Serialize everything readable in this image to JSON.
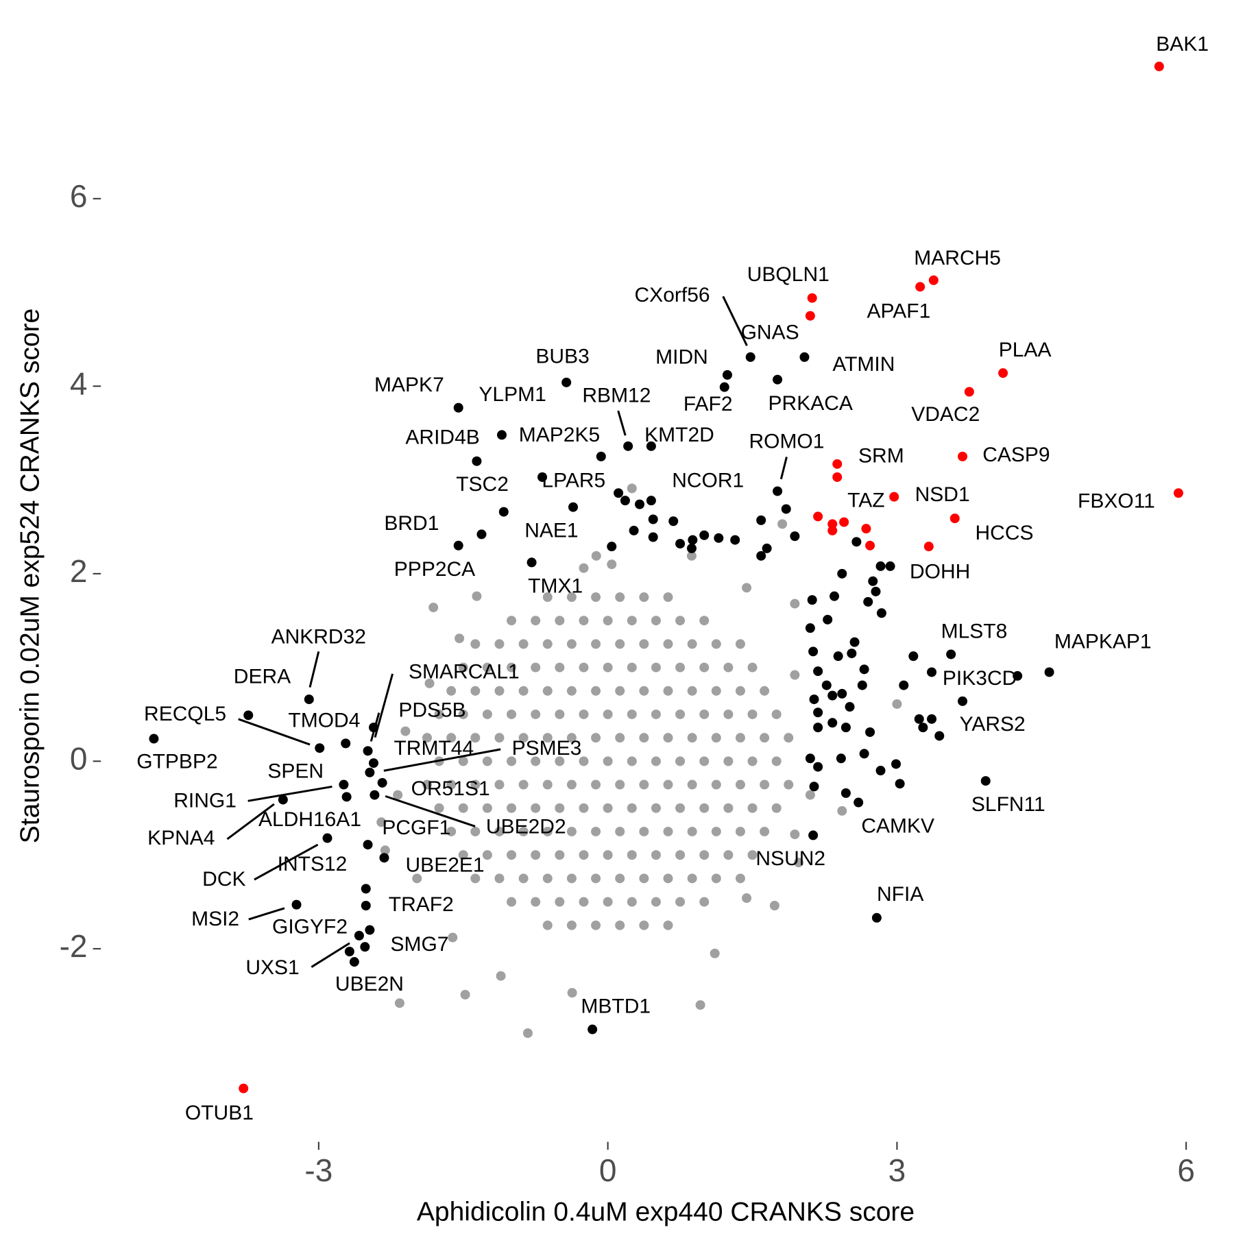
{
  "chart_data": {
    "type": "scatter",
    "xlabel": "Aphidicolin 0.4uM exp440 CRANKS score",
    "ylabel": "Staurosporin 0.02uM exp524 CRANKS score",
    "xlim": [
      -5.2,
      6.4
    ],
    "ylim": [
      -4.0,
      7.8
    ],
    "xticks": [
      -3,
      0,
      3,
      6
    ],
    "yticks": [
      -2,
      0,
      2,
      4,
      6
    ],
    "grid": false,
    "series": [
      {
        "color": "#a0a0a0",
        "x": [
          -0.625,
          -0.375,
          -0.125,
          0.125,
          0.375,
          0.625,
          -1,
          -0.75,
          -0.5,
          -0.25,
          0,
          0.25,
          0.5,
          0.75,
          1,
          -1.375,
          -1.125,
          -0.875,
          -0.625,
          -0.375,
          -0.125,
          0.125,
          0.375,
          0.625,
          0.875,
          1.125,
          1.375,
          -1.5,
          -1.25,
          -1,
          -0.75,
          -0.5,
          -0.25,
          0,
          0.25,
          0.5,
          0.75,
          1,
          1.25,
          1.5,
          -1.625,
          -1.375,
          -1.125,
          -0.875,
          -0.625,
          -0.375,
          -0.125,
          0.125,
          0.375,
          0.625,
          0.875,
          1.125,
          1.375,
          1.625,
          -1.75,
          -1.5,
          -1.25,
          -1,
          -0.75,
          -0.5,
          -0.25,
          0,
          0.25,
          0.5,
          0.75,
          1,
          1.25,
          1.5,
          1.75,
          -1.875,
          -1.625,
          -1.375,
          -1.125,
          -0.875,
          -0.625,
          -0.375,
          -0.125,
          0.125,
          0.375,
          0.625,
          0.875,
          1.125,
          1.375,
          1.625,
          1.875,
          -1.75,
          -1.5,
          -1.25,
          -1,
          -0.75,
          -0.5,
          -0.25,
          0,
          0.25,
          0.5,
          0.75,
          1,
          1.25,
          1.5,
          1.75,
          -1.875,
          -1.625,
          -1.375,
          -1.125,
          -0.875,
          -0.625,
          -0.375,
          -0.125,
          0.125,
          0.375,
          0.625,
          0.875,
          1.125,
          1.375,
          1.625,
          1.875,
          -1.75,
          -1.5,
          -1.25,
          -1,
          -0.75,
          -0.5,
          -0.25,
          0,
          0.25,
          0.5,
          0.75,
          1,
          1.25,
          1.5,
          1.75,
          -1.625,
          -1.375,
          -1.125,
          -0.875,
          -0.625,
          -0.375,
          -0.125,
          0.125,
          0.375,
          0.625,
          0.875,
          1.125,
          1.375,
          1.625,
          -1.5,
          -1.25,
          -1,
          -0.75,
          -0.5,
          -0.25,
          0,
          0.25,
          0.5,
          0.75,
          1,
          1.25,
          1.5,
          -1.375,
          -1.125,
          -0.875,
          -0.625,
          -0.375,
          -0.125,
          0.125,
          0.375,
          0.625,
          0.875,
          1.125,
          1.375,
          -1,
          -0.75,
          -0.5,
          -0.25,
          0,
          0.25,
          0.5,
          0.75,
          1,
          -0.625,
          -0.375,
          -0.125,
          0.125,
          0.375,
          0.625,
          0.25,
          -0.12,
          -0.25,
          0.04,
          -1.81,
          -1.54,
          -1.36,
          3.0,
          1.98,
          1.73,
          1.44,
          0.96,
          -0.83,
          -1.48,
          -2.16,
          -1.11,
          -0.37,
          -2.35,
          -2.31,
          -2.18,
          -2.1,
          1.81,
          1.94,
          2.43,
          2.1,
          0.87,
          1.44,
          -1.61,
          1.11,
          1.94,
          -1.98,
          1.94,
          -1.85
        ],
        "values": [
          1.75,
          1.75,
          1.75,
          1.75,
          1.75,
          1.75,
          1.5,
          1.5,
          1.5,
          1.5,
          1.5,
          1.5,
          1.5,
          1.5,
          1.5,
          1.25,
          1.25,
          1.25,
          1.25,
          1.25,
          1.25,
          1.25,
          1.25,
          1.25,
          1.25,
          1.25,
          1.25,
          1,
          1,
          1,
          1,
          1,
          1,
          1,
          1,
          1,
          1,
          1,
          1,
          1,
          0.75,
          0.75,
          0.75,
          0.75,
          0.75,
          0.75,
          0.75,
          0.75,
          0.75,
          0.75,
          0.75,
          0.75,
          0.75,
          0.75,
          0.5,
          0.5,
          0.5,
          0.5,
          0.5,
          0.5,
          0.5,
          0.5,
          0.5,
          0.5,
          0.5,
          0.5,
          0.5,
          0.5,
          0.5,
          0.25,
          0.25,
          0.25,
          0.25,
          0.25,
          0.25,
          0.25,
          0.25,
          0.25,
          0.25,
          0.25,
          0.25,
          0.25,
          0.25,
          0.25,
          0.25,
          0,
          0,
          0,
          0,
          0,
          0,
          0,
          0,
          0,
          0,
          0,
          0,
          0,
          0,
          0,
          -0.25,
          -0.25,
          -0.25,
          -0.25,
          -0.25,
          -0.25,
          -0.25,
          -0.25,
          -0.25,
          -0.25,
          -0.25,
          -0.25,
          -0.25,
          -0.25,
          -0.25,
          -0.25,
          -0.5,
          -0.5,
          -0.5,
          -0.5,
          -0.5,
          -0.5,
          -0.5,
          -0.5,
          -0.5,
          -0.5,
          -0.5,
          -0.5,
          -0.5,
          -0.5,
          -0.5,
          -0.75,
          -0.75,
          -0.75,
          -0.75,
          -0.75,
          -0.75,
          -0.75,
          -0.75,
          -0.75,
          -0.75,
          -0.75,
          -0.75,
          -0.75,
          -0.75,
          -1,
          -1,
          -1,
          -1,
          -1,
          -1,
          -1,
          -1,
          -1,
          -1,
          -1,
          -1,
          -1,
          -1.25,
          -1.25,
          -1.25,
          -1.25,
          -1.25,
          -1.25,
          -1.25,
          -1.25,
          -1.25,
          -1.25,
          -1.25,
          -1.25,
          -1.5,
          -1.5,
          -1.5,
          -1.5,
          -1.5,
          -1.5,
          -1.5,
          -1.5,
          -1.5,
          -1.75,
          -1.75,
          -1.75,
          -1.75,
          -1.75,
          -1.75,
          2.91,
          2.19,
          2.06,
          2.1,
          1.64,
          1.31,
          1.76,
          0.61,
          -1.08,
          -1.54,
          -1.46,
          -2.6,
          -2.9,
          -2.49,
          -2.58,
          -2.29,
          -2.47,
          -0.65,
          -0.95,
          -0.36,
          0.32,
          2.53,
          1.68,
          -0.53,
          -0.36,
          2.19,
          1.85,
          -1.88,
          -2.05,
          -0.78,
          -1.25,
          0.92,
          0.83
        ]
      },
      {
        "color": "#000000",
        "x": [
          4.25,
          2.93,
          2.83,
          2.43,
          2.75,
          2.78,
          2.7,
          2.84,
          2.35,
          2.12,
          2.28,
          2.1,
          2.56,
          2.53,
          2.13,
          2.39,
          2.18,
          2.66,
          2.27,
          2.33,
          2.43,
          2.64,
          2.14,
          2.51,
          2.18,
          2.33,
          2.47,
          2.18,
          2.72,
          2.66,
          2.42,
          2.1,
          2.18,
          2.83,
          2.99,
          3.03,
          2.47,
          2.14,
          3.17,
          3.07,
          3.23,
          3.27,
          3.36,
          3.44,
          0.11,
          0.18,
          0.33,
          0.27,
          0.47,
          0.47,
          0.68,
          0.75,
          0.87,
          0.88,
          1.0,
          1.15,
          1.32,
          1.59,
          1.85,
          1.94,
          1.65,
          1.59,
          2.58,
          0.04
        ],
        "values": [
          0.91,
          2.08,
          2.08,
          2.0,
          1.92,
          1.81,
          1.7,
          1.58,
          1.76,
          1.72,
          1.51,
          1.42,
          1.27,
          1.15,
          1.17,
          1.12,
          0.96,
          0.98,
          0.81,
          0.7,
          0.72,
          0.81,
          0.66,
          0.58,
          0.52,
          0.41,
          0.36,
          0.36,
          0.31,
          0.08,
          0.03,
          0.03,
          -0.06,
          -0.1,
          -0.03,
          -0.24,
          -0.34,
          -0.27,
          1.12,
          0.81,
          0.45,
          0.36,
          0.45,
          0.27,
          2.86,
          2.78,
          2.74,
          2.46,
          2.58,
          2.39,
          2.56,
          2.32,
          2.27,
          2.36,
          2.41,
          2.38,
          2.36,
          2.57,
          2.69,
          2.4,
          2.27,
          2.19,
          2.34,
          2.29
        ]
      },
      {
        "color": "#000000",
        "labels": [
          "BUB3",
          "MAPK7",
          "YLPM1",
          "RBM12",
          "KMT2D",
          "ARID4B",
          "MAP2K5",
          "LPAR5",
          "TSC2",
          "NCOR1",
          "NAE1",
          "BRD1",
          "PPP2CA",
          "TMX1",
          "MIDN",
          "FAF2",
          "CXorf56",
          "ATMIN",
          "PRKACA",
          "ROMO1",
          "MBTD1",
          "NFIA",
          "NSUN2",
          "CAMKV",
          "SLFN11",
          "YARS2",
          "PIK3CD",
          "MLST8",
          "MAPKAP1",
          "GTPBP2",
          "DERA",
          "ANKRD32",
          "RECQL5",
          "TMOD4",
          "SMARCAL1",
          "PDS5B",
          "TRMT44",
          "PSME3",
          "OR51S1",
          "SPEN",
          "RING1",
          "UBE2D2",
          "ALDH16A1",
          "PCGF1",
          "UBE2E1",
          "TRAF2",
          "KPNA4",
          "DCK",
          "INTS12",
          "MSI2",
          "GIGYF2",
          "SMG7",
          "UXS1",
          "UBE2N"
        ],
        "x": [
          -0.43,
          -1.55,
          -1.1,
          0.21,
          0.45,
          -1.36,
          -0.07,
          -0.68,
          -1.08,
          0.45,
          -0.79,
          -1.55,
          -1.31,
          -0.36,
          1.24,
          1.21,
          1.48,
          2.04,
          1.76,
          1.76,
          -0.16,
          2.79,
          2.13,
          2.6,
          3.92,
          3.68,
          3.36,
          3.56,
          4.58,
          -4.71,
          -3.73,
          -3.1,
          -2.99,
          -2.72,
          -2.43,
          -2.49,
          -2.43,
          -2.47,
          -2.34,
          -2.74,
          -2.71,
          -2.42,
          -2.49,
          -2.32,
          -2.51,
          -2.51,
          -3.37,
          -2.91,
          -2.58,
          -3.23,
          -2.47,
          -2.52,
          -2.63,
          -2.68
        ],
        "values": [
          4.04,
          3.77,
          3.48,
          3.36,
          3.36,
          3.2,
          3.25,
          3.03,
          2.66,
          2.78,
          2.12,
          2.3,
          2.42,
          2.71,
          4.12,
          3.99,
          4.31,
          4.31,
          4.07,
          2.88,
          -2.86,
          -1.67,
          -0.79,
          -0.44,
          -0.21,
          0.64,
          0.95,
          1.14,
          0.95,
          0.24,
          0.49,
          0.66,
          0.14,
          0.19,
          0.36,
          0.11,
          -0.02,
          -0.12,
          -0.23,
          -0.25,
          -0.38,
          -0.36,
          -0.89,
          -1.03,
          -1.36,
          -1.54,
          -0.41,
          -0.82,
          -1.86,
          -1.53,
          -1.8,
          -1.98,
          -2.14,
          -2.03
        ]
      },
      {
        "color": "#ff0000",
        "x": [
          2.38,
          2.18,
          2.33,
          2.68,
          2.72,
          2.33
        ],
        "values": [
          3.03,
          2.61,
          2.53,
          2.48,
          2.3,
          2.46
        ]
      },
      {
        "color": "#ff0000",
        "labels": [
          "BAK1",
          "MARCH5",
          "APAF1",
          "UBQLN1",
          "GNAS",
          "PLAA",
          "VDAC2",
          "CASP9",
          "FBXO11",
          "SRM",
          "NSD1",
          "HCCS",
          "TAZ",
          "DOHH",
          "OTUB1"
        ],
        "x": [
          5.72,
          3.38,
          3.24,
          2.12,
          2.1,
          4.1,
          3.75,
          3.68,
          5.92,
          2.38,
          2.97,
          3.6,
          2.45,
          3.33,
          -3.78
        ],
        "values": [
          7.41,
          5.13,
          5.06,
          4.94,
          4.75,
          4.14,
          3.94,
          3.25,
          2.86,
          3.17,
          2.82,
          2.59,
          2.55,
          2.29,
          -3.49
        ]
      }
    ]
  }
}
